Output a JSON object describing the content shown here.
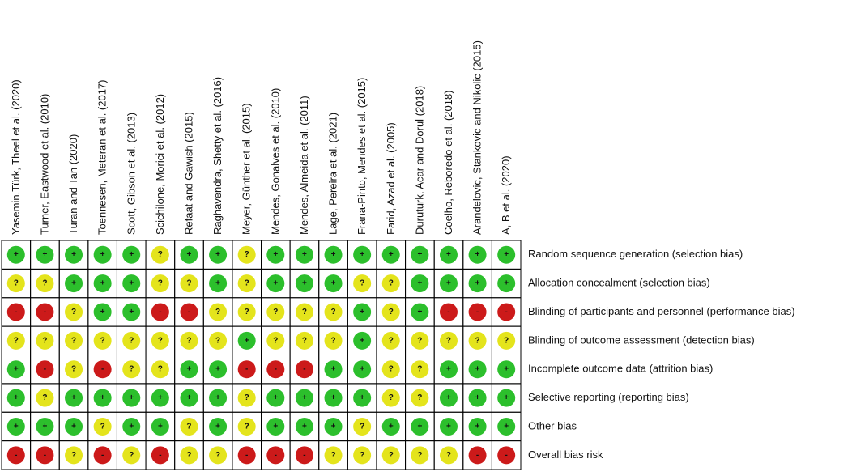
{
  "studies": [
    "Yasemin.Türk, Theel et al. (2020)",
    "Turner, Eastwood et al. (2010)",
    "Turan and Tan (2020)",
    "Toennesen, Meteran et al. (2017)",
    "Scott, Gibson et al. (2013)",
    "Scichilone, Morici et al. (2012)",
    "Refaat and Gawish (2015)",
    "Raghavendra, Shetty et al. (2016)",
    "Meyer, Günther et al. (2015)",
    "Mendes, Gonalves et al. (2010)",
    "Mendes, Almeida et al. (2011)",
    "Lage, Pereira et al. (2021)",
    "Frana-Pinto, Mendes et al. (2015)",
    "Farid, Azad et al. (2005)",
    "Duruturk, Acar and Dorul (2018)",
    "Coelho, Reboredo et al. (2018)",
    "Arandelovic, Stankovic and Nikolic (2015)",
    "A, B et al. (2020)"
  ],
  "domains": [
    "Random sequence generation (selection bias)",
    "Allocation concealment (selection bias)",
    "Blinding of participants and personnel (performance bias)",
    "Blinding of outcome assessment (detection bias)",
    "Incomplete outcome data (attrition bias)",
    "Selective reporting (reporting bias)",
    "Other bias",
    "Overall bias risk"
  ],
  "grid": [
    [
      "+",
      "+",
      "+",
      "+",
      "+",
      "?",
      "+",
      "+",
      "?",
      "+",
      "+",
      "+",
      "+",
      "+",
      "+",
      "+",
      "+",
      "+"
    ],
    [
      "?",
      "?",
      "+",
      "+",
      "+",
      "?",
      "?",
      "+",
      "?",
      "+",
      "+",
      "+",
      "?",
      "?",
      "+",
      "+",
      "+",
      "+"
    ],
    [
      "-",
      "-",
      "?",
      "+",
      "+",
      "-",
      "-",
      "?",
      "?",
      "?",
      "?",
      "?",
      "+",
      "?",
      "+",
      "-",
      "-",
      "-"
    ],
    [
      "?",
      "?",
      "?",
      "?",
      "?",
      "?",
      "?",
      "?",
      "+",
      "?",
      "?",
      "?",
      "+",
      "?",
      "?",
      "?",
      "?",
      "?"
    ],
    [
      "+",
      "-",
      "?",
      "-",
      "?",
      "?",
      "+",
      "+",
      "-",
      "-",
      "-",
      "+",
      "+",
      "?",
      "?",
      "+",
      "+",
      "+"
    ],
    [
      "+",
      "?",
      "+",
      "+",
      "+",
      "+",
      "+",
      "+",
      "?",
      "+",
      "+",
      "+",
      "+",
      "?",
      "?",
      "+",
      "+",
      "+"
    ],
    [
      "+",
      "+",
      "+",
      "?",
      "+",
      "+",
      "?",
      "+",
      "?",
      "+",
      "+",
      "+",
      "?",
      "+",
      "+",
      "+",
      "+",
      "+"
    ],
    [
      "-",
      "-",
      "?",
      "-",
      "?",
      "-",
      "?",
      "?",
      "-",
      "-",
      "-",
      "?",
      "?",
      "?",
      "?",
      "?",
      "-",
      "-"
    ]
  ],
  "colors": {
    "+": "#2cbf2c",
    "?": "#e4e41c",
    "-": "#cc1a1a"
  }
}
